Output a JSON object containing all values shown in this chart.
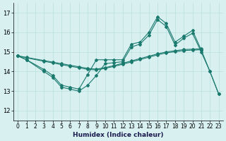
{
  "series_high_x": [
    0,
    1,
    3,
    4,
    5,
    6,
    7,
    8,
    9,
    10,
    11,
    12,
    13,
    14,
    15,
    16,
    17,
    18,
    19,
    20,
    21,
    22,
    23
  ],
  "series_high_y": [
    14.8,
    14.6,
    14.1,
    13.8,
    13.3,
    13.2,
    13.1,
    13.85,
    14.6,
    14.6,
    14.6,
    14.6,
    15.4,
    15.5,
    16.0,
    16.8,
    16.45,
    15.5,
    15.8,
    16.1,
    15.1,
    14.0,
    12.85
  ],
  "series_trend1_x": [
    0,
    1,
    3,
    4,
    5,
    6,
    7,
    8,
    9,
    10,
    11,
    12,
    13,
    14,
    15,
    16,
    17,
    18,
    19,
    20,
    21
  ],
  "series_trend1_y": [
    14.8,
    14.72,
    14.56,
    14.48,
    14.4,
    14.32,
    14.24,
    14.16,
    14.12,
    14.2,
    14.3,
    14.42,
    14.54,
    14.66,
    14.78,
    14.9,
    15.0,
    15.06,
    15.12,
    15.14,
    15.16
  ],
  "series_trend2_x": [
    0,
    1,
    3,
    4,
    5,
    6,
    7,
    8,
    9,
    10,
    11,
    12,
    13,
    14,
    15,
    16,
    17,
    18,
    19,
    20,
    21
  ],
  "series_trend2_y": [
    14.8,
    14.7,
    14.52,
    14.44,
    14.35,
    14.27,
    14.19,
    14.11,
    14.08,
    14.16,
    14.26,
    14.37,
    14.49,
    14.61,
    14.73,
    14.85,
    14.95,
    15.01,
    15.07,
    15.09,
    15.11
  ],
  "series_low_x": [
    0,
    1,
    3,
    4,
    5,
    6,
    7,
    8,
    9,
    10,
    11,
    12,
    13,
    14,
    15,
    16,
    17,
    18,
    19,
    20,
    21,
    22,
    23
  ],
  "series_low_y": [
    14.8,
    14.6,
    14.0,
    13.7,
    13.2,
    13.1,
    13.0,
    13.3,
    13.8,
    14.4,
    14.45,
    14.5,
    15.25,
    15.4,
    15.85,
    16.65,
    16.3,
    15.35,
    15.7,
    15.95,
    15.0,
    14.0,
    12.85
  ],
  "line_color": "#1a7a6e",
  "bg_color": "#d8f0f0",
  "grid_color": "#b8dede",
  "xlabel": "Humidex (Indice chaleur)",
  "ylim": [
    11.5,
    17.5
  ],
  "xlim": [
    -0.5,
    23.5
  ],
  "yticks": [
    12,
    13,
    14,
    15,
    16,
    17
  ],
  "xticks": [
    0,
    1,
    2,
    3,
    4,
    5,
    6,
    7,
    8,
    9,
    10,
    11,
    12,
    13,
    14,
    15,
    16,
    17,
    18,
    19,
    20,
    21,
    22,
    23
  ]
}
